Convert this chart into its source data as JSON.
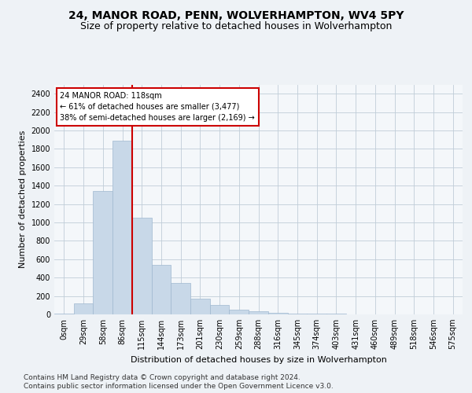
{
  "title_line1": "24, MANOR ROAD, PENN, WOLVERHAMPTON, WV4 5PY",
  "title_line2": "Size of property relative to detached houses in Wolverhampton",
  "xlabel": "Distribution of detached houses by size in Wolverhampton",
  "ylabel": "Number of detached properties",
  "categories": [
    "0sqm",
    "29sqm",
    "58sqm",
    "86sqm",
    "115sqm",
    "144sqm",
    "173sqm",
    "201sqm",
    "230sqm",
    "259sqm",
    "288sqm",
    "316sqm",
    "345sqm",
    "374sqm",
    "403sqm",
    "431sqm",
    "460sqm",
    "489sqm",
    "518sqm",
    "546sqm",
    "575sqm"
  ],
  "values": [
    10,
    120,
    1340,
    1890,
    1050,
    540,
    340,
    170,
    100,
    55,
    30,
    20,
    10,
    10,
    5,
    3,
    2,
    1,
    0,
    1,
    0
  ],
  "bar_color": "#c8d8e8",
  "bar_edgecolor": "#a0b8d0",
  "ylim": [
    0,
    2500
  ],
  "yticks": [
    0,
    200,
    400,
    600,
    800,
    1000,
    1200,
    1400,
    1600,
    1800,
    2000,
    2200,
    2400
  ],
  "vline_x_index": 4,
  "vline_color": "#cc0000",
  "annotation_text": "24 MANOR ROAD: 118sqm\n← 61% of detached houses are smaller (3,477)\n38% of semi-detached houses are larger (2,169) →",
  "annotation_box_color": "#ffffff",
  "annotation_box_edgecolor": "#cc0000",
  "footer_line1": "Contains HM Land Registry data © Crown copyright and database right 2024.",
  "footer_line2": "Contains public sector information licensed under the Open Government Licence v3.0.",
  "bg_color": "#eef2f6",
  "plot_bg_color": "#f4f7fa",
  "grid_color": "#c0ccd8",
  "title_fontsize": 10,
  "subtitle_fontsize": 9,
  "axis_label_fontsize": 8,
  "tick_fontsize": 7,
  "annotation_fontsize": 7,
  "footer_fontsize": 6.5
}
